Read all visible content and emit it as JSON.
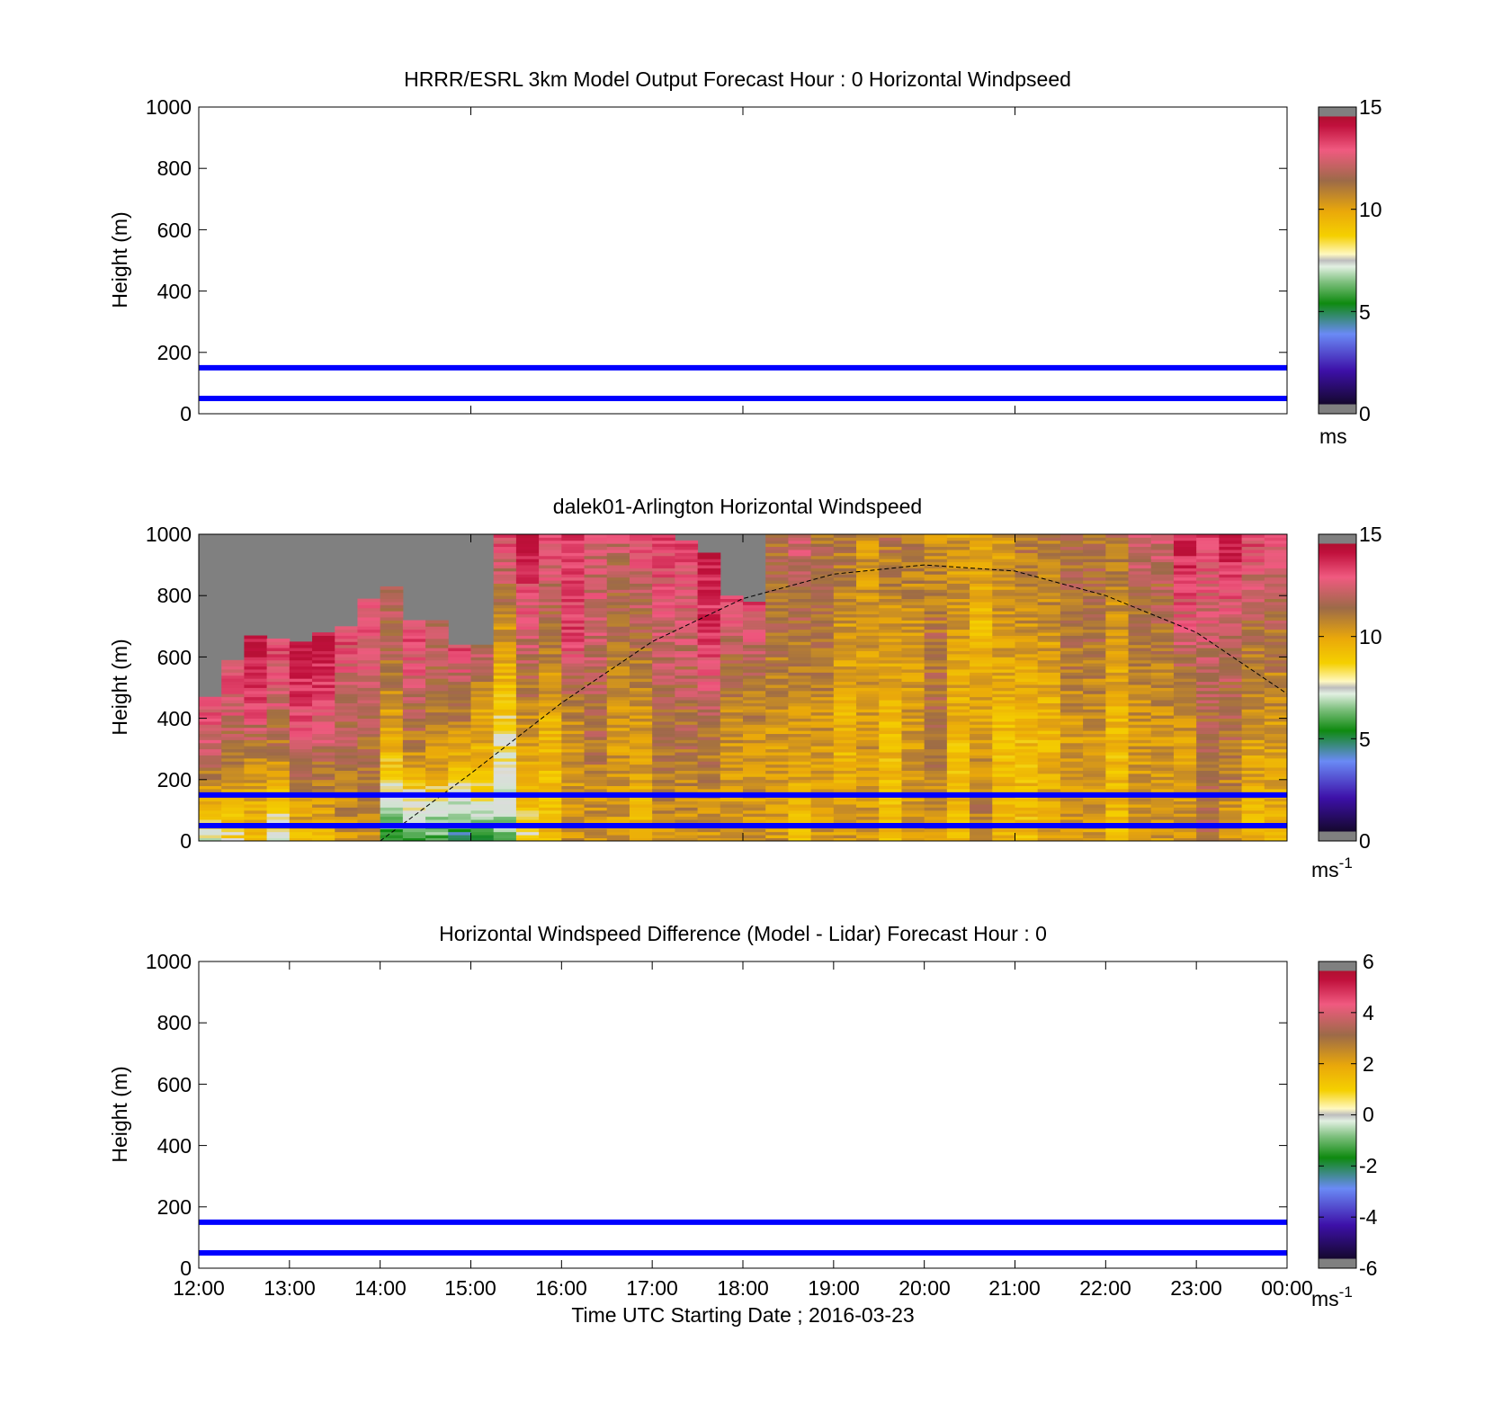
{
  "chart_data": [
    {
      "type": "heatmap",
      "title": "HRRR/ESRL 3km Model Output   Forecast Hour : 0 Horizontal Windpseed",
      "ylabel": "Height (m)",
      "xlabel": "",
      "ylim": [
        0,
        1000
      ],
      "yticks": [
        "0",
        "200",
        "400",
        "600",
        "800",
        "1000"
      ],
      "xticks": [],
      "hlines": [
        150,
        50
      ],
      "colorbar": {
        "ticks": [
          "0",
          "5",
          "10",
          "15"
        ],
        "range": [
          0,
          15
        ],
        "unit": "ms"
      }
    },
    {
      "type": "heatmap",
      "title": "dalek01-Arlington  Horizontal Windspeed",
      "ylabel": "Height (m)",
      "xlabel": "",
      "ylim": [
        0,
        1000
      ],
      "yticks": [
        "0",
        "200",
        "400",
        "600",
        "800",
        "1000"
      ],
      "xticks": [],
      "hlines": [
        150,
        50
      ],
      "colorbar": {
        "ticks": [
          "0",
          "5",
          "10",
          "15"
        ],
        "range": [
          0,
          15
        ],
        "unit": "ms",
        "unit_sup": "-1"
      },
      "x_start_hours": 12.0,
      "column_width_hours": 0.25,
      "columns": [
        {
          "top": 470,
          "speeds": [
            7,
            10,
            12,
            13
          ]
        },
        {
          "top": 590,
          "speeds": [
            8,
            10,
            12,
            13
          ]
        },
        {
          "top": 670,
          "speeds": [
            9,
            10,
            13,
            14
          ]
        },
        {
          "top": 660,
          "speeds": [
            7,
            10,
            12,
            13
          ]
        },
        {
          "top": 650,
          "speeds": [
            9,
            11,
            13,
            14
          ]
        },
        {
          "top": 680,
          "speeds": [
            9,
            11,
            13,
            14
          ]
        },
        {
          "top": 700,
          "speeds": [
            10,
            11,
            12,
            13
          ]
        },
        {
          "top": 790,
          "speeds": [
            10,
            11,
            12,
            13
          ]
        },
        {
          "top": 830,
          "speeds": [
            5,
            9,
            11,
            12
          ]
        },
        {
          "top": 720,
          "speeds": [
            5,
            10,
            12,
            13
          ]
        },
        {
          "top": 720,
          "speeds": [
            5,
            10,
            11,
            12
          ]
        },
        {
          "top": 640,
          "speeds": [
            4,
            9,
            11,
            13
          ]
        },
        {
          "top": 640,
          "speeds": [
            5,
            9,
            10,
            12
          ]
        },
        {
          "top": 1000,
          "speeds": [
            6,
            8,
            10,
            13
          ]
        },
        {
          "top": 1000,
          "speeds": [
            8,
            10,
            12,
            14
          ]
        },
        {
          "top": 1000,
          "speeds": [
            9,
            9,
            11,
            13
          ]
        },
        {
          "top": 1000,
          "speeds": [
            10,
            10,
            13,
            13
          ]
        },
        {
          "top": 1000,
          "speeds": [
            10,
            11,
            12,
            12
          ]
        },
        {
          "top": 1000,
          "speeds": [
            10,
            10,
            11,
            12
          ]
        },
        {
          "top": 1000,
          "speeds": [
            9,
            10,
            11,
            13
          ]
        },
        {
          "top": 1000,
          "speeds": [
            10,
            11,
            12,
            13
          ]
        },
        {
          "top": 980,
          "speeds": [
            10,
            11,
            12,
            13
          ]
        },
        {
          "top": 940,
          "speeds": [
            10,
            11,
            13,
            14
          ]
        },
        {
          "top": 800,
          "speeds": [
            10,
            10,
            11,
            13
          ]
        },
        {
          "top": 780,
          "speeds": [
            10,
            10,
            11,
            13
          ]
        },
        {
          "top": 1000,
          "speeds": [
            10,
            10,
            11,
            11
          ]
        },
        {
          "top": 1000,
          "speeds": [
            9,
            10,
            11,
            12
          ]
        },
        {
          "top": 1000,
          "speeds": [
            10,
            10,
            11,
            11
          ]
        },
        {
          "top": 1000,
          "speeds": [
            10,
            9,
            10,
            11
          ]
        },
        {
          "top": 1000,
          "speeds": [
            10,
            10,
            10,
            10
          ]
        },
        {
          "top": 1000,
          "speeds": [
            9,
            9,
            10,
            11
          ]
        },
        {
          "top": 1000,
          "speeds": [
            10,
            10,
            10,
            11
          ]
        },
        {
          "top": 1000,
          "speeds": [
            10,
            11,
            11,
            10
          ]
        },
        {
          "top": 1000,
          "speeds": [
            9,
            9,
            10,
            10
          ]
        },
        {
          "top": 1000,
          "speeds": [
            11,
            10,
            9,
            10
          ]
        },
        {
          "top": 1000,
          "speeds": [
            9,
            9,
            10,
            10
          ]
        },
        {
          "top": 1000,
          "speeds": [
            9,
            9,
            10,
            11
          ]
        },
        {
          "top": 1000,
          "speeds": [
            10,
            9,
            10,
            11
          ]
        },
        {
          "top": 1000,
          "speeds": [
            10,
            10,
            11,
            11
          ]
        },
        {
          "top": 1000,
          "speeds": [
            10,
            10,
            11,
            11
          ]
        },
        {
          "top": 1000,
          "speeds": [
            9,
            9,
            10,
            11
          ]
        },
        {
          "top": 1000,
          "speeds": [
            10,
            10,
            11,
            12
          ]
        },
        {
          "top": 1000,
          "speeds": [
            10,
            10,
            11,
            12
          ]
        },
        {
          "top": 1000,
          "speeds": [
            10,
            10,
            12,
            14
          ]
        },
        {
          "top": 1000,
          "speeds": [
            11,
            11,
            12,
            13
          ]
        },
        {
          "top": 1000,
          "speeds": [
            10,
            11,
            12,
            14
          ]
        },
        {
          "top": 1000,
          "speeds": [
            9,
            10,
            11,
            13
          ]
        },
        {
          "top": 1000,
          "speeds": [
            9,
            10,
            11,
            13
          ]
        }
      ],
      "dashed_curve": {
        "x_hours": [
          14.0,
          15.0,
          16.0,
          17.0,
          18.0,
          19.0,
          20.0,
          21.0,
          22.0,
          23.0,
          24.0
        ],
        "y_m": [
          0,
          220,
          450,
          650,
          790,
          870,
          900,
          880,
          800,
          680,
          480
        ]
      }
    },
    {
      "type": "heatmap",
      "title": "Horizontal Windspeed Difference (Model - Lidar) Forecast Hour : 0",
      "ylabel": "Height (m)",
      "xlabel": "Time UTC  Starting Date ; 2016-03-23",
      "ylim": [
        0,
        1000
      ],
      "yticks": [
        "0",
        "200",
        "400",
        "600",
        "800",
        "1000"
      ],
      "xticks": [
        "12:00",
        "13:00",
        "14:00",
        "15:00",
        "16:00",
        "17:00",
        "18:00",
        "19:00",
        "20:00",
        "21:00",
        "22:00",
        "23:00",
        "00:00"
      ],
      "hlines": [
        150,
        50
      ],
      "colorbar": {
        "ticks": [
          "-6",
          "-4",
          "-2",
          "0",
          "2",
          "4",
          "6"
        ],
        "range": [
          -6,
          6
        ],
        "unit": "ms",
        "unit_sup": "-1"
      }
    }
  ],
  "colors": {
    "hline": "#0000ff",
    "nodata": "#808080",
    "scale_stops": [
      "#808080",
      "#1a0a3a",
      "#3b0fa0",
      "#5a7bf0",
      "#3a9a3a",
      "#0f8a0f",
      "#d8ecd8",
      "#c8c8c8",
      "#f5d000",
      "#f0b000",
      "#d8a020",
      "#a67040",
      "#b05060",
      "#f05075",
      "#c0103a",
      "#808080"
    ]
  }
}
